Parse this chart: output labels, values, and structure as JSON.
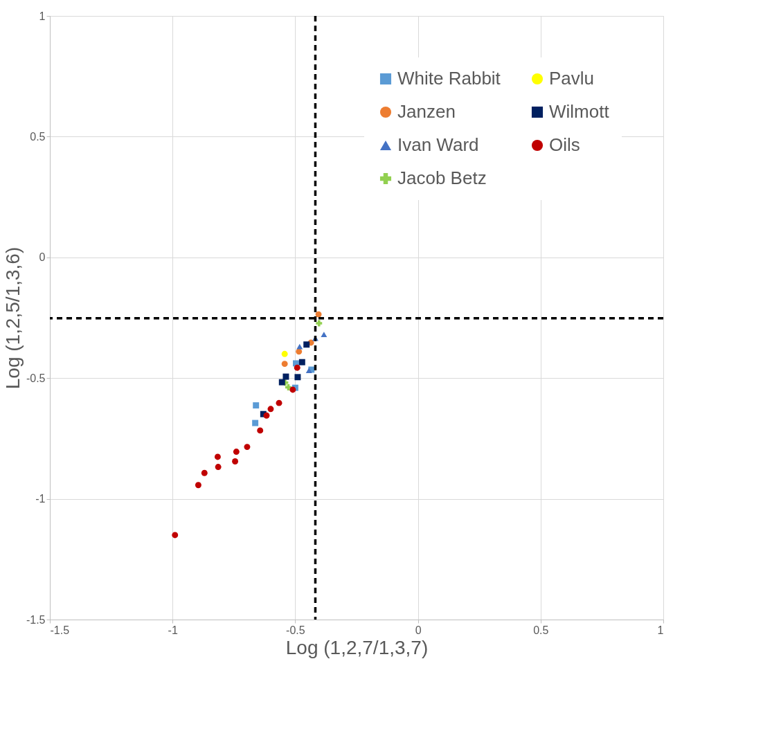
{
  "chart_data": {
    "type": "scatter",
    "xlabel": "Log (1,2,7/1,3,7)",
    "ylabel": "Log (1,2,5/1,3,6)",
    "xlim": [
      -1.5,
      1
    ],
    "ylim": [
      -1.5,
      1
    ],
    "xticks": [
      -1.5,
      -1,
      -0.5,
      0,
      0.5,
      1
    ],
    "yticks": [
      -1.5,
      -1,
      -0.5,
      0,
      0.5,
      1
    ],
    "grid": true,
    "legend": "top right",
    "ref_lines": [
      {
        "axis": "x",
        "value": -0.418,
        "color": "#000000",
        "line_style": "dashed"
      },
      {
        "axis": "y",
        "value": -0.252,
        "color": "#000000",
        "line_style": "dashed"
      }
    ],
    "series": [
      {
        "name": "White Rabbit",
        "color": "#5b9bd5",
        "marker": "square",
        "x": [
          -0.66,
          -0.663,
          -0.497,
          -0.5,
          -0.434
        ],
        "values": [
          -0.613,
          -0.686,
          -0.439,
          -0.54,
          -0.465
        ]
      },
      {
        "name": "Janzen",
        "color": "#ed7d31",
        "marker": "circle",
        "x": [
          -0.405,
          -0.543,
          -0.485,
          -0.436
        ],
        "values": [
          -0.236,
          -0.441,
          -0.39,
          -0.353
        ]
      },
      {
        "name": "Ivan Ward",
        "color": "#4472c4",
        "marker": "triangle",
        "x": [
          -0.383,
          -0.418,
          -0.482,
          -0.444
        ],
        "values": [
          -0.319,
          -0.335,
          -0.369,
          -0.468
        ]
      },
      {
        "name": "Jacob Betz",
        "color": "#92d050",
        "marker": "cross",
        "x": [
          -0.403,
          -0.541,
          -0.528
        ],
        "values": [
          -0.273,
          -0.519,
          -0.538
        ]
      },
      {
        "name": "Pavlu",
        "color": "#ffff00",
        "marker": "circle",
        "x": [
          -0.543
        ],
        "values": [
          -0.4
        ]
      },
      {
        "name": "Wilmott",
        "color": "#002060",
        "marker": "square",
        "x": [
          -0.454,
          -0.472,
          -0.49,
          -0.538,
          -0.554,
          -0.63
        ],
        "values": [
          -0.361,
          -0.434,
          -0.496,
          -0.494,
          -0.517,
          -0.649
        ]
      },
      {
        "name": "Oils",
        "color": "#c00000",
        "marker": "circle",
        "x": [
          -0.99,
          -0.895,
          -0.87,
          -0.816,
          -0.814,
          -0.74,
          -0.745,
          -0.696,
          -0.643,
          -0.617,
          -0.6,
          -0.566,
          -0.51,
          -0.492
        ],
        "values": [
          -1.15,
          -0.943,
          -0.893,
          -0.826,
          -0.868,
          -0.805,
          -0.845,
          -0.785,
          -0.717,
          -0.655,
          -0.628,
          -0.603,
          -0.548,
          -0.457
        ]
      }
    ]
  }
}
